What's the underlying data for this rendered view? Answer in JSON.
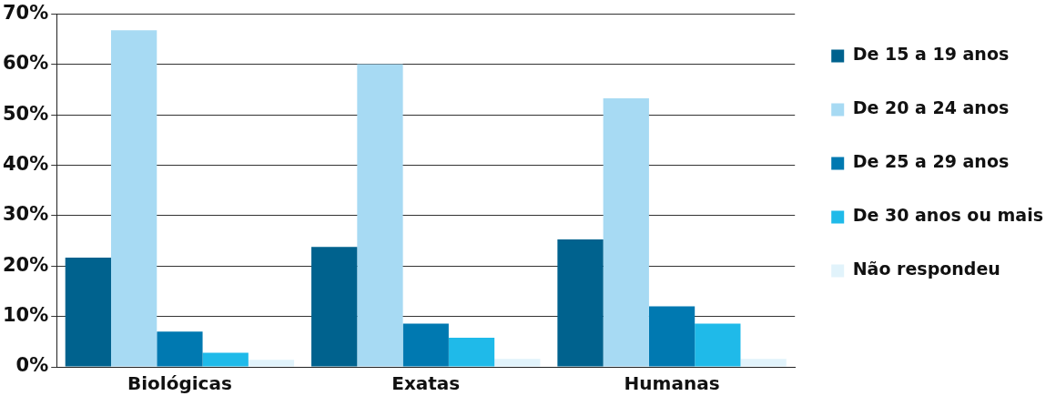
{
  "chart_data": {
    "type": "bar",
    "categories": [
      "Biológicas",
      "Exatas",
      "Humanas"
    ],
    "series": [
      {
        "name": "De 15 a 19 anos",
        "color": "#00628e",
        "values": [
          21.7,
          23.8,
          25.3
        ]
      },
      {
        "name": "De 20 a 24 anos",
        "color": "#a7daf3",
        "values": [
          66.8,
          60.1,
          53.3
        ]
      },
      {
        "name": "De 25 a 29 anos",
        "color": "#0079b1",
        "values": [
          7.0,
          8.6,
          12.0
        ]
      },
      {
        "name": "De 30 anos ou mais",
        "color": "#1fbae9",
        "values": [
          2.8,
          5.8,
          8.6
        ]
      },
      {
        "name": "Não respondeu",
        "color": "#e1f3fb",
        "values": [
          1.4,
          1.6,
          1.6
        ]
      }
    ],
    "ylim": [
      0,
      70
    ],
    "yticks": [
      {
        "value": 0,
        "label": "0%"
      },
      {
        "value": 10,
        "label": "10%"
      },
      {
        "value": 20,
        "label": "20%"
      },
      {
        "value": 30,
        "label": "30%"
      },
      {
        "value": 40,
        "label": "40%"
      },
      {
        "value": 50,
        "label": "50%"
      },
      {
        "value": 60,
        "label": "60%"
      },
      {
        "value": 70,
        "label": "70%"
      }
    ],
    "grid": "y",
    "legend": "right"
  }
}
